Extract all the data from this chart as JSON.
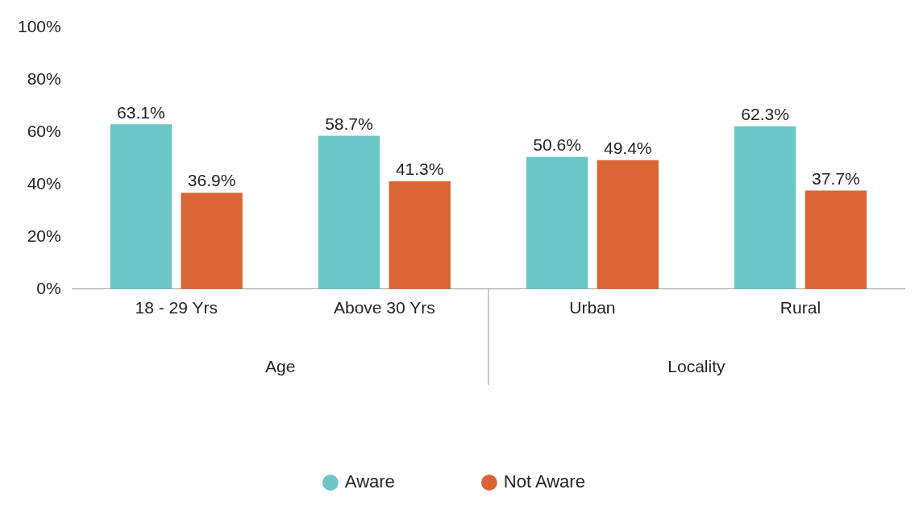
{
  "chart_data": {
    "type": "bar",
    "categories": [
      "18 - 29 Yrs",
      "Above 30 Yrs",
      "Urban",
      "Rural"
    ],
    "series": [
      {
        "name": "Aware",
        "color": "#6cc5c6",
        "values": [
          63.1,
          58.7,
          50.6,
          62.3
        ],
        "value_labels": [
          "63.1%",
          "58.7%",
          "50.6%",
          "62.3%"
        ]
      },
      {
        "name": "Not Aware",
        "color": "#d96535",
        "values": [
          36.9,
          41.3,
          49.4,
          37.7
        ],
        "value_labels": [
          "36.9%",
          "41.3%",
          "49.4%",
          "37.7%"
        ]
      }
    ],
    "annotations": [
      "Age",
      "Locality"
    ],
    "ylim": [
      0,
      100
    ],
    "yticks": [
      {
        "value": 0,
        "label": "0%"
      },
      {
        "value": 20,
        "label": "20%"
      },
      {
        "value": 40,
        "label": "40%"
      },
      {
        "value": 60,
        "label": "60%"
      },
      {
        "value": 80,
        "label": "80%"
      },
      {
        "value": 100,
        "label": "100%"
      }
    ],
    "grid": false,
    "legend": "bottom"
  }
}
